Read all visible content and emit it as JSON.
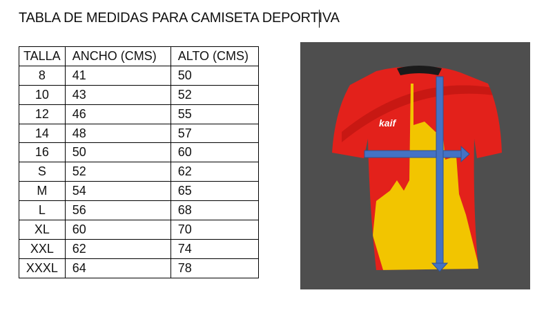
{
  "title": "TABLA DE MEDIDAS PARA CAMISETA DEPORTIVA",
  "table": {
    "headers": [
      "TALLA",
      "ANCHO (CMS)",
      "ALTO (CMS)"
    ],
    "rows": [
      [
        "8",
        "41",
        "50"
      ],
      [
        "10",
        "43",
        "52"
      ],
      [
        "12",
        "46",
        "55"
      ],
      [
        "14",
        "48",
        "57"
      ],
      [
        "16",
        "50",
        "60"
      ],
      [
        "S",
        "52",
        "62"
      ],
      [
        "M",
        "54",
        "65"
      ],
      [
        "L",
        "56",
        "68"
      ],
      [
        "XL",
        "60",
        "70"
      ],
      [
        "XXL",
        "62",
        "74"
      ],
      [
        "XXXL",
        "64",
        "78"
      ]
    ]
  },
  "image": {
    "brand_logo": "kaif",
    "colors": {
      "background": "#4e4e4e",
      "shirt": "#e3211b",
      "pattern": "#f2c500",
      "arrow": "#4472c4"
    }
  }
}
